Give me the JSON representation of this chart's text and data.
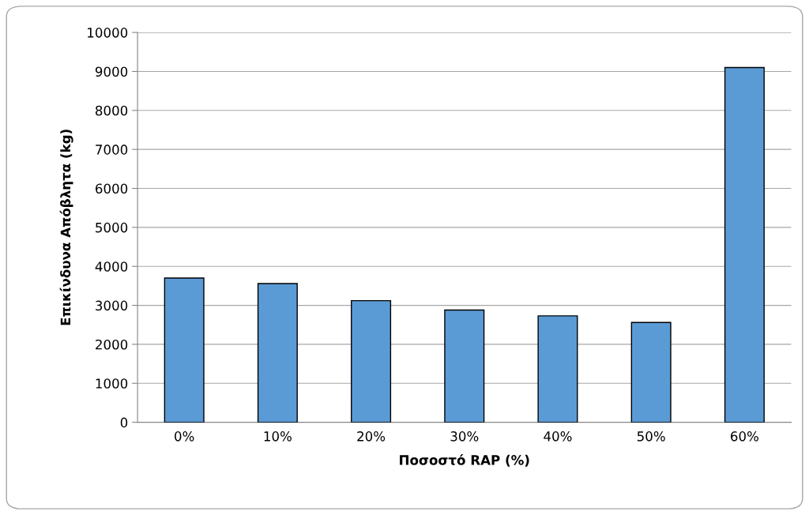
{
  "chart_data": {
    "type": "bar",
    "xlabel": "Ποσοστό RAP (%)",
    "ylabel": "Επικίνδυνα Απόβλητα (kg)",
    "categories": [
      "0%",
      "10%",
      "20%",
      "30%",
      "40%",
      "50%",
      "60%"
    ],
    "values": [
      3700,
      3560,
      3120,
      2880,
      2730,
      2560,
      9100
    ],
    "color": "#5b9bd5",
    "ylim": [
      0,
      10000
    ],
    "yticks": [
      0,
      1000,
      2000,
      3000,
      4000,
      5000,
      6000,
      7000,
      8000,
      9000,
      10000
    ],
    "grid": "y"
  }
}
